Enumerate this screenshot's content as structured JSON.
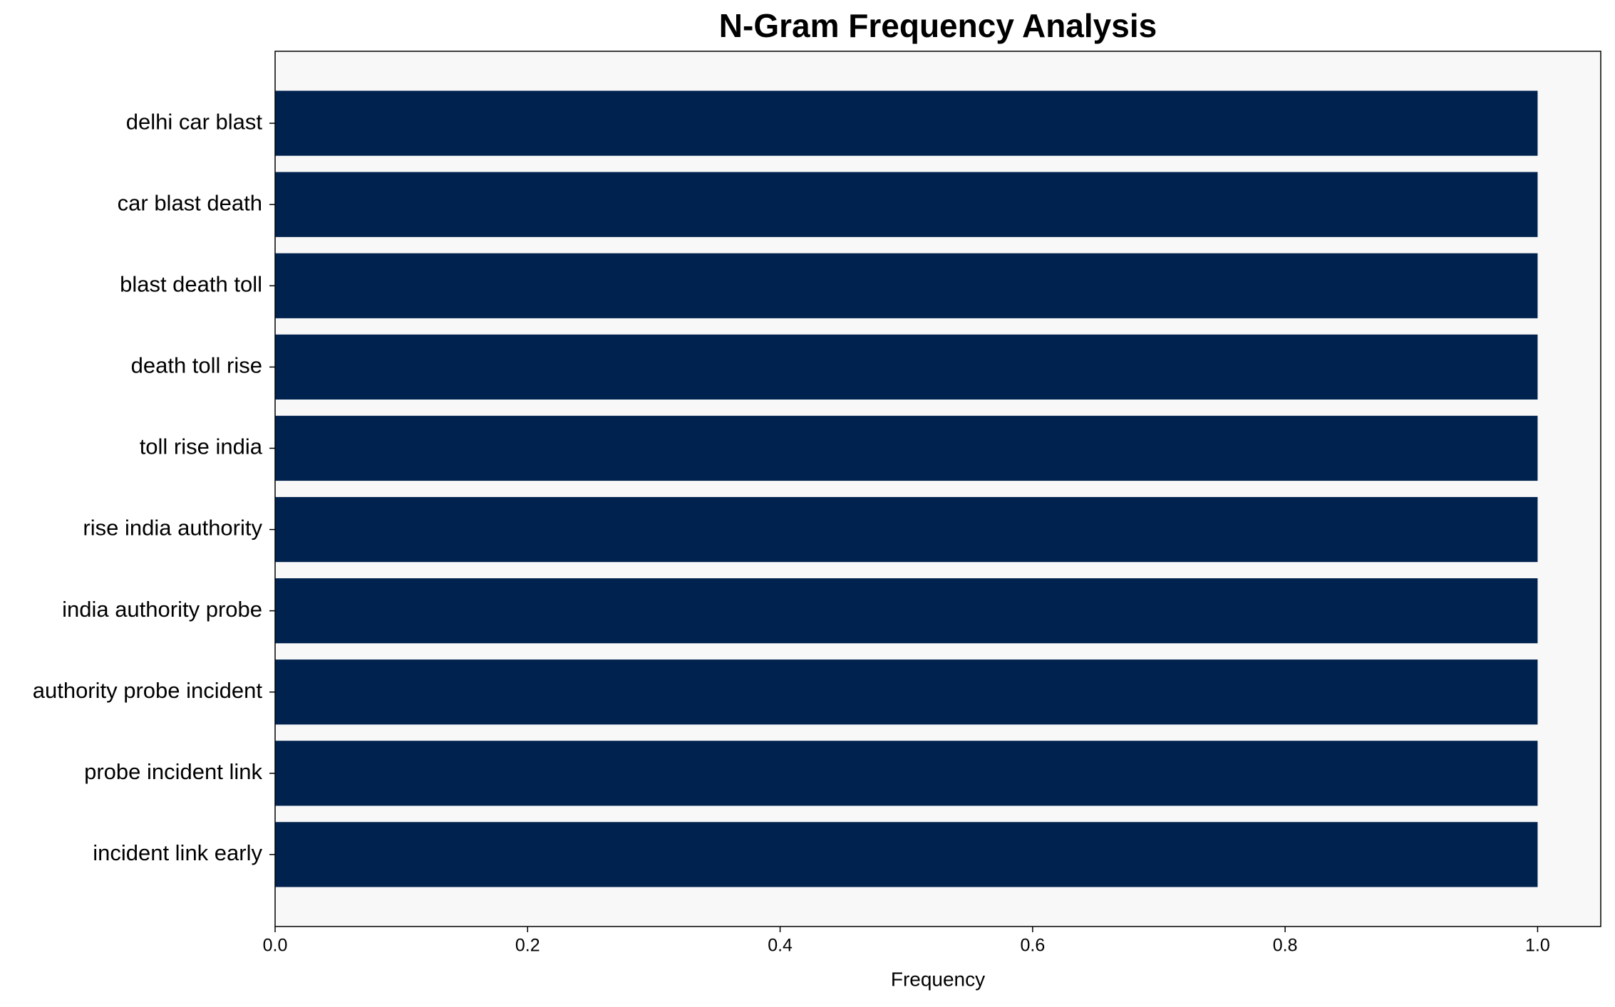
{
  "chart_data": {
    "type": "barh",
    "title": "N-Gram Frequency Analysis",
    "xlabel": "Frequency",
    "categories": [
      "delhi car blast",
      "car blast death",
      "blast death toll",
      "death toll rise",
      "toll rise india",
      "rise india authority",
      "india authority probe",
      "authority probe incident",
      "probe incident link",
      "incident link early"
    ],
    "values": [
      1,
      1,
      1,
      1,
      1,
      1,
      1,
      1,
      1,
      1
    ],
    "color": "#00224e",
    "xlim": [
      0,
      1.05
    ],
    "xticks": [
      {
        "value": 0,
        "label": "0.0"
      },
      0.2,
      0.4,
      0.6,
      0.8,
      {
        "value": 1,
        "label": "1.0"
      }
    ],
    "grid": false
  }
}
